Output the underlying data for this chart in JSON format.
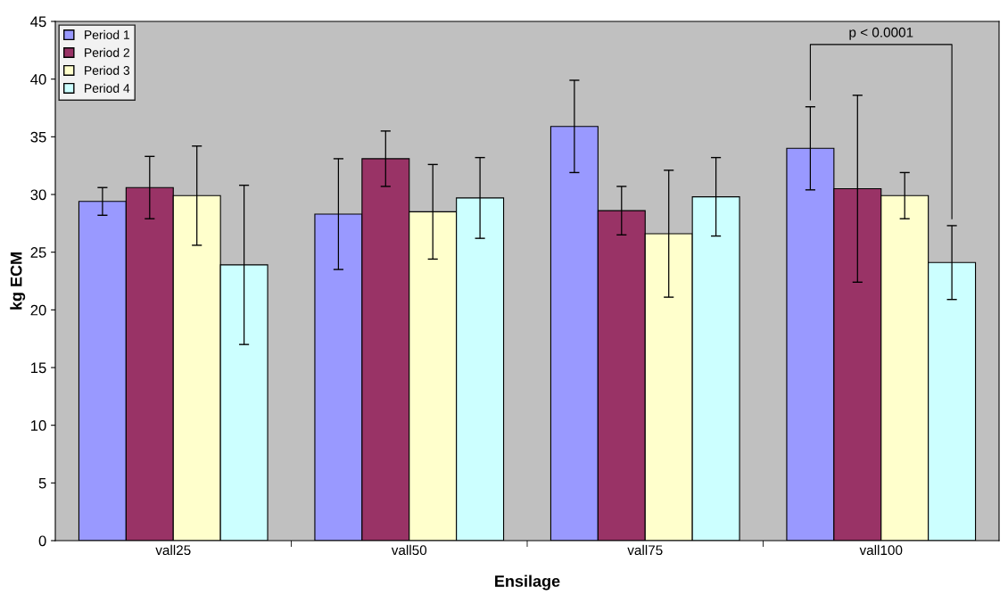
{
  "chart_data": {
    "type": "bar",
    "xlabel": "Ensilage",
    "ylabel": "kg ECM",
    "categories": [
      "vall25",
      "vall50",
      "vall75",
      "vall100"
    ],
    "series": [
      {
        "name": "Period 1",
        "color": "#9999ff",
        "values": [
          29.4,
          28.3,
          35.9,
          34.0
        ],
        "errors": [
          1.2,
          4.8,
          4.0,
          3.6
        ]
      },
      {
        "name": "Period 2",
        "color": "#993366",
        "values": [
          30.6,
          33.1,
          28.6,
          30.5
        ],
        "errors": [
          2.7,
          2.4,
          2.1,
          8.1
        ]
      },
      {
        "name": "Period 3",
        "color": "#ffffcc",
        "values": [
          29.9,
          28.5,
          26.6,
          29.9
        ],
        "errors": [
          4.3,
          4.1,
          5.5,
          2.0
        ]
      },
      {
        "name": "Period 4",
        "color": "#ccffff",
        "values": [
          23.9,
          29.7,
          29.8,
          24.1
        ],
        "errors": [
          6.9,
          3.5,
          3.4,
          3.2
        ]
      }
    ],
    "ylim": [
      0,
      45
    ],
    "yticks": [
      0,
      5,
      10,
      15,
      20,
      25,
      30,
      35,
      40,
      45
    ],
    "annotations": [
      "p < 0.0001"
    ],
    "legend": "top left",
    "grid": false
  }
}
